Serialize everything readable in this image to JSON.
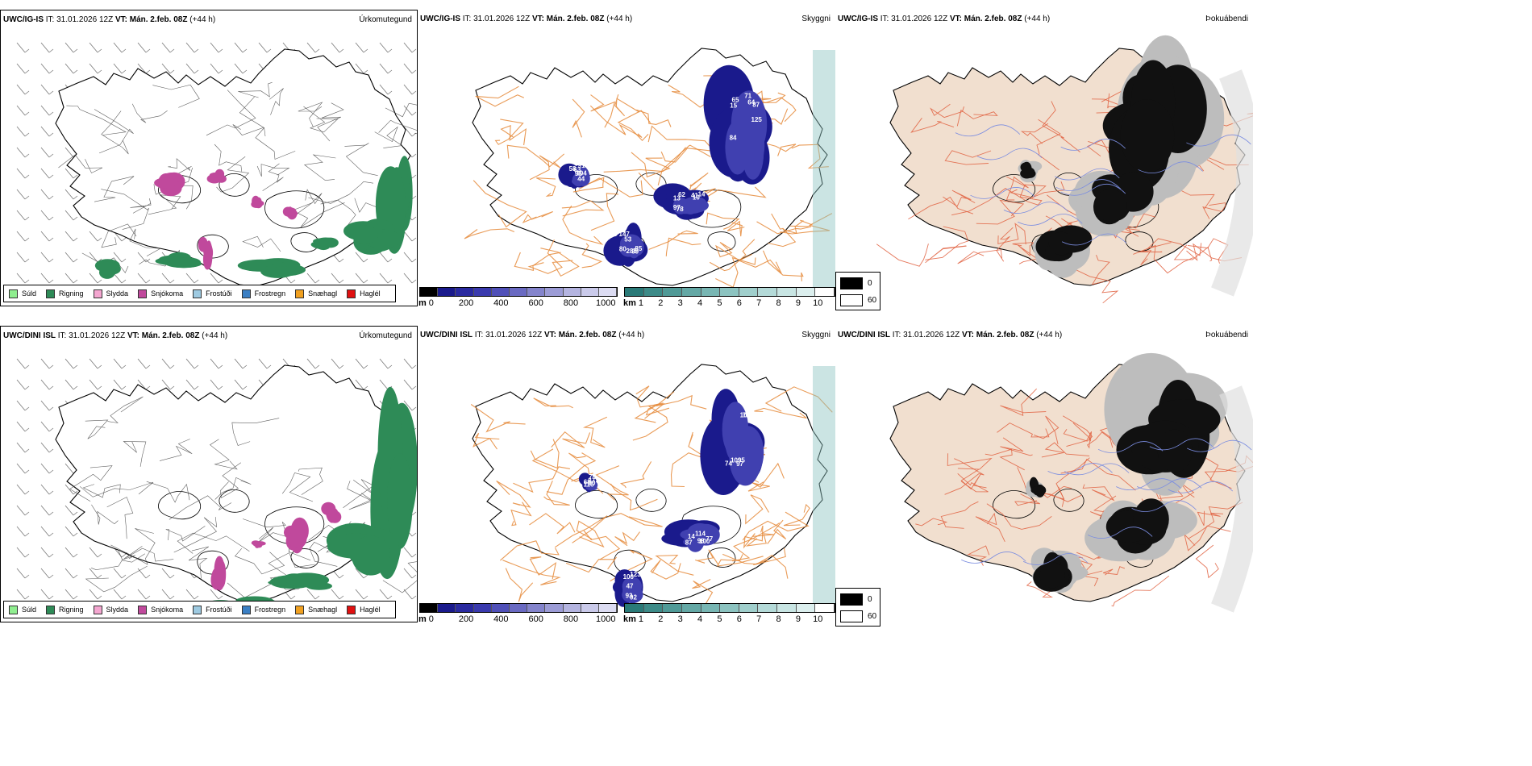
{
  "rows": [
    {
      "model": "UWC/IG-IS",
      "it_label": "IT:",
      "it_value": "31.01.2026 12Z",
      "vt_label": "VT:",
      "vt_value": "Mán. 2.feb. 08Z",
      "lead": "(+44 h)",
      "panels": [
        {
          "label": "Úrkomutegund"
        },
        {
          "label": "Skyggni"
        },
        {
          "label": "Þokuábendi"
        }
      ],
      "visibility_numbers": [
        "65",
        "10",
        "99",
        "58",
        "87",
        "97",
        "85",
        "96",
        "64",
        "41",
        "80",
        "91",
        "84",
        "13",
        "285",
        "104",
        "125",
        "62",
        "147",
        "63",
        "71",
        "78",
        "53",
        "44",
        "15",
        "14"
      ]
    },
    {
      "model": "UWC/DINI ISL",
      "it_label": "IT:",
      "it_value": "31.01.2026 12Z",
      "vt_label": "VT:",
      "vt_value": "Mán. 2.feb. 08Z",
      "lead": "(+44 h)",
      "panels": [
        {
          "label": "Úrkomutegund"
        },
        {
          "label": "Skyggni"
        },
        {
          "label": "Þokuábendi"
        }
      ],
      "visibility_numbers": [
        "109",
        "114",
        "92",
        "79",
        "104",
        "100",
        "93",
        "116",
        "74",
        "77",
        "123",
        "68",
        "95",
        "87",
        "100",
        "30",
        "97",
        "98",
        "47",
        "37",
        "72",
        "14"
      ]
    }
  ],
  "precip_legend": [
    {
      "label": "Súld",
      "color": "#90ee90"
    },
    {
      "label": "Rigning",
      "color": "#2e8b57"
    },
    {
      "label": "Slydda",
      "color": "#f4a6d0"
    },
    {
      "label": "Snjókoma",
      "color": "#c0499c"
    },
    {
      "label": "Frostúði",
      "color": "#9ecae1"
    },
    {
      "label": "Frostregn",
      "color": "#3a7fc4"
    },
    {
      "label": "Snæhagl",
      "color": "#f0a020"
    },
    {
      "label": "Haglél",
      "color": "#e01010"
    }
  ],
  "elevation_bar": {
    "unit": "m",
    "ticks": [
      "0",
      "200",
      "400",
      "600",
      "800",
      "1000"
    ],
    "colors": [
      "#000000",
      "#1a1a8c",
      "#2a2aa0",
      "#3a3aae",
      "#5050b8",
      "#6a6ac2",
      "#8484cc",
      "#9c9cd6",
      "#b4b4e0",
      "#cacaea",
      "#dcdcf2"
    ]
  },
  "visibility_bar": {
    "unit": "km",
    "ticks": [
      "1",
      "2",
      "3",
      "4",
      "5",
      "6",
      "7",
      "8",
      "9",
      "10"
    ],
    "colors": [
      "#2a7a78",
      "#3d8b88",
      "#509a97",
      "#64a8a5",
      "#78b6b3",
      "#8cc3c0",
      "#a0cfcc",
      "#b4dad8",
      "#c8e5e3",
      "#dcefee",
      "#ffffff"
    ]
  },
  "fog_legend": [
    {
      "label": "0",
      "color": "#000000"
    },
    {
      "label": "60",
      "color": "#ffffff"
    }
  ]
}
